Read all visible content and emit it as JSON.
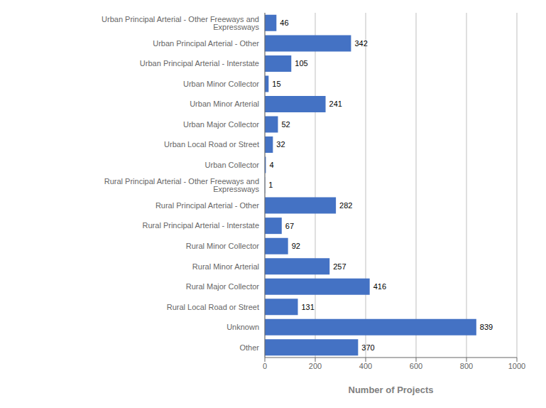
{
  "chart_data": {
    "type": "bar",
    "orientation": "horizontal",
    "categories": [
      "Urban Principal Arterial - Other Freeways and Expressways",
      "Urban Principal Arterial - Other",
      "Urban Principal Arterial - Interstate",
      "Urban Minor Collector",
      "Urban Minor Arterial",
      "Urban Major Collector",
      "Urban Local Road or Street",
      "Urban Collector",
      "Rural Principal Arterial - Other Freeways and Expressways",
      "Rural Principal Arterial - Other",
      "Rural Principal Arterial - Interstate",
      "Rural Minor Collector",
      "Rural Minor Arterial",
      "Rural Major Collector",
      "Rural Local Road or Street",
      "Unknown",
      "Other"
    ],
    "values": [
      46,
      342,
      105,
      15,
      241,
      52,
      32,
      4,
      1,
      282,
      67,
      92,
      257,
      416,
      131,
      839,
      370
    ],
    "color": "#4472C4",
    "xlabel": "Number of Projects",
    "xlim": [
      0,
      1000
    ],
    "xticks": [
      0,
      200,
      400,
      600,
      800,
      1000
    ],
    "grid": true,
    "data_labels": true
  }
}
